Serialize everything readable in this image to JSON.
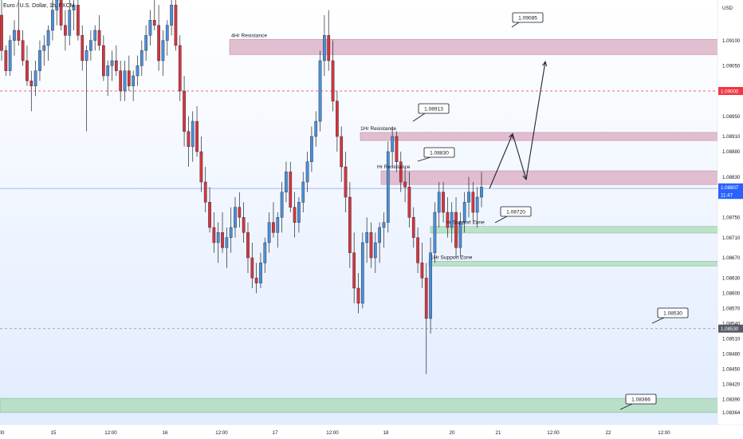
{
  "header": {
    "symbol": "Euro / U.S. Dollar, 1h, FXCM"
  },
  "currency": "USD",
  "colors": {
    "up": "#4b8fd8",
    "down": "#d7353d",
    "resistance": "#d8a6be",
    "support": "#a9d9b4",
    "bg_top": "#ffffff",
    "bg_bottom": "#e1ecff"
  },
  "chart_data": {
    "type": "candlestick",
    "ylim": [
      1.0834,
      1.0918
    ],
    "y_ticks": [
      "1.09100",
      "1.09050",
      "1.09000",
      "1.08950",
      "1.08910",
      "1.08880",
      "1.08830",
      "1.08790",
      "1.08750",
      "1.08710",
      "1.08670",
      "1.08630",
      "1.08600",
      "1.08570",
      "1.08540",
      "1.08510",
      "1.08480",
      "1.08450",
      "1.08420",
      "1.08390",
      "1.08364"
    ],
    "x_ticks": [
      "00",
      "15",
      "12:00",
      "16",
      "12:00",
      "17",
      "12:00",
      "18",
      "20",
      "21",
      "12:00",
      "22",
      "12:00"
    ],
    "price_labels": [
      {
        "value": "1.09000",
        "color": "#f23645"
      },
      {
        "value": "1.08807",
        "color": "#2962ff"
      },
      {
        "value": "11:47",
        "color": "#2962ff"
      },
      {
        "value": "1.08530",
        "color": "#555a66"
      }
    ],
    "zones": [
      {
        "label": "4Hr Resistance",
        "kind": "resistance",
        "from": 1.09072,
        "to": 1.09102
      },
      {
        "label": "1Hr Resistance",
        "kind": "resistance",
        "from": 1.08902,
        "to": 1.08918
      },
      {
        "label": "Hr Resistance",
        "kind": "resistance",
        "from": 1.08815,
        "to": 1.08842
      },
      {
        "label": "Hr Support Zone",
        "kind": "support",
        "from": 1.08719,
        "to": 1.08732
      },
      {
        "label": "1Hr Support Zone",
        "kind": "support",
        "from": 1.08654,
        "to": 1.08663
      },
      {
        "label": "",
        "kind": "support",
        "from": 1.08364,
        "to": 1.08392
      }
    ],
    "callouts": [
      "1.09085",
      "1.08913",
      "1.08830",
      "1.08720",
      "1.08530",
      "1.08366"
    ],
    "lines": [
      {
        "value": 1.09,
        "style": "dashed",
        "color": "#f23645"
      },
      {
        "value": 1.08807,
        "style": "solid",
        "color": "#b7c9f5"
      },
      {
        "value": 1.0853,
        "style": "dashed",
        "color": "#9aa0aa"
      }
    ],
    "projection": [
      1.08807,
      1.08915,
      1.08825,
      1.09058
    ],
    "candles": [
      [
        1.0915,
        1.0926,
        1.0906,
        1.0908
      ],
      [
        1.0908,
        1.0909,
        1.0903,
        1.0904
      ],
      [
        1.0904,
        1.0911,
        1.0903,
        1.091
      ],
      [
        1.091,
        1.0914,
        1.0907,
        1.0912
      ],
      [
        1.0912,
        1.0918,
        1.0909,
        1.091
      ],
      [
        1.091,
        1.0912,
        1.0905,
        1.0906
      ],
      [
        1.0906,
        1.0909,
        1.0901,
        1.0902
      ],
      [
        1.0902,
        1.0904,
        1.0896,
        1.0901
      ],
      [
        1.0901,
        1.0906,
        1.0899,
        1.0904
      ],
      [
        1.0904,
        1.091,
        1.0902,
        1.0908
      ],
      [
        1.0908,
        1.0911,
        1.0905,
        1.0909
      ],
      [
        1.0909,
        1.0913,
        1.0906,
        1.0912
      ],
      [
        1.0912,
        1.0918,
        1.091,
        1.0916
      ],
      [
        1.0916,
        1.0921,
        1.0913,
        1.0918
      ],
      [
        1.0918,
        1.0922,
        1.0912,
        1.0913
      ],
      [
        1.0913,
        1.0916,
        1.0908,
        1.0911
      ],
      [
        1.0911,
        1.0918,
        1.0909,
        1.0916
      ],
      [
        1.0916,
        1.092,
        1.0912,
        1.0917
      ],
      [
        1.0917,
        1.092,
        1.091,
        1.0911
      ],
      [
        1.0911,
        1.0913,
        1.0904,
        1.0906
      ],
      [
        1.0906,
        1.0909,
        1.0892,
        1.0908
      ],
      [
        1.0908,
        1.0912,
        1.0906,
        1.091
      ],
      [
        1.091,
        1.0913,
        1.0908,
        1.0912
      ],
      [
        1.0912,
        1.0915,
        1.0908,
        1.0909
      ],
      [
        1.0909,
        1.0911,
        1.0902,
        1.0903
      ],
      [
        1.0903,
        1.0906,
        1.0899,
        1.0905
      ],
      [
        1.0905,
        1.0908,
        1.0902,
        1.0906
      ],
      [
        1.0906,
        1.0909,
        1.0903,
        1.0904
      ],
      [
        1.0904,
        1.0906,
        1.0898,
        1.09
      ],
      [
        1.09,
        1.0906,
        1.0898,
        1.0904
      ],
      [
        1.0904,
        1.0907,
        1.09,
        1.0901
      ],
      [
        1.0901,
        1.0904,
        1.0898,
        1.0903
      ],
      [
        1.0903,
        1.0907,
        1.0901,
        1.0905
      ],
      [
        1.0905,
        1.091,
        1.0903,
        1.0908
      ],
      [
        1.0908,
        1.0913,
        1.0906,
        1.0911
      ],
      [
        1.0911,
        1.0916,
        1.0909,
        1.0914
      ],
      [
        1.0914,
        1.0918,
        1.0912,
        1.0913
      ],
      [
        1.0913,
        1.0917,
        1.0904,
        1.0906
      ],
      [
        1.0906,
        1.0912,
        1.0903,
        1.091
      ],
      [
        1.091,
        1.0914,
        1.0907,
        1.0913
      ],
      [
        1.0913,
        1.0919,
        1.0911,
        1.0917
      ],
      [
        1.0917,
        1.0918,
        1.0908,
        1.0909
      ],
      [
        1.0909,
        1.0911,
        1.0898,
        1.09
      ],
      [
        1.09,
        1.0903,
        1.0889,
        1.0892
      ],
      [
        1.0892,
        1.0895,
        1.0885,
        1.0889
      ],
      [
        1.0889,
        1.0896,
        1.0886,
        1.0894
      ],
      [
        1.0894,
        1.0897,
        1.0887,
        1.0888
      ],
      [
        1.0888,
        1.0891,
        1.088,
        1.0882
      ],
      [
        1.0882,
        1.0885,
        1.0876,
        1.0878
      ],
      [
        1.0878,
        1.0881,
        1.0872,
        1.0873
      ],
      [
        1.0873,
        1.0876,
        1.0868,
        1.087
      ],
      [
        1.087,
        1.0874,
        1.0866,
        1.0872
      ],
      [
        1.0872,
        1.0876,
        1.0868,
        1.0869
      ],
      [
        1.0869,
        1.0873,
        1.0865,
        1.0871
      ],
      [
        1.0871,
        1.0877,
        1.0868,
        1.0873
      ],
      [
        1.0873,
        1.0879,
        1.0871,
        1.0877
      ],
      [
        1.0877,
        1.088,
        1.0873,
        1.0875
      ],
      [
        1.0875,
        1.0878,
        1.087,
        1.0872
      ],
      [
        1.0872,
        1.0874,
        1.0864,
        1.0867
      ],
      [
        1.0867,
        1.087,
        1.0861,
        1.0863
      ],
      [
        1.0863,
        1.0866,
        1.086,
        1.0862
      ],
      [
        1.0862,
        1.0868,
        1.0861,
        1.0866
      ],
      [
        1.0866,
        1.0871,
        1.0864,
        1.087
      ],
      [
        1.087,
        1.0876,
        1.0868,
        1.0874
      ],
      [
        1.0874,
        1.0878,
        1.0871,
        1.0872
      ],
      [
        1.0872,
        1.0876,
        1.0869,
        1.0875
      ],
      [
        1.0875,
        1.0882,
        1.0872,
        1.088
      ],
      [
        1.088,
        1.0886,
        1.0878,
        1.0884
      ],
      [
        1.0884,
        1.0886,
        1.0876,
        1.0877
      ],
      [
        1.0877,
        1.088,
        1.0871,
        1.0874
      ],
      [
        1.0874,
        1.0879,
        1.0872,
        1.0878
      ],
      [
        1.0878,
        1.0884,
        1.0876,
        1.0882
      ],
      [
        1.0882,
        1.0888,
        1.088,
        1.0886
      ],
      [
        1.0886,
        1.0893,
        1.0884,
        1.0891
      ],
      [
        1.0891,
        1.0896,
        1.0889,
        1.0894
      ],
      [
        1.0894,
        1.0908,
        1.0892,
        1.0906
      ],
      [
        1.0906,
        1.0915,
        1.0903,
        1.0911
      ],
      [
        1.0911,
        1.0916,
        1.0904,
        1.0906
      ],
      [
        1.0906,
        1.091,
        1.0896,
        1.0898
      ],
      [
        1.0898,
        1.09,
        1.0888,
        1.0891
      ],
      [
        1.0891,
        1.0893,
        1.0882,
        1.0885
      ],
      [
        1.0885,
        1.0888,
        1.0876,
        1.0879
      ],
      [
        1.0879,
        1.0882,
        1.0865,
        1.0868
      ],
      [
        1.0868,
        1.0872,
        1.0858,
        1.0861
      ],
      [
        1.0861,
        1.0864,
        1.0856,
        1.0858
      ],
      [
        1.0858,
        1.0872,
        1.0857,
        1.087
      ],
      [
        1.087,
        1.0875,
        1.0866,
        1.0872
      ],
      [
        1.0872,
        1.0874,
        1.0865,
        1.0867
      ],
      [
        1.0867,
        1.0872,
        1.0864,
        1.087
      ],
      [
        1.087,
        1.0874,
        1.0866,
        1.0873
      ],
      [
        1.0873,
        1.0876,
        1.0869,
        1.0874
      ],
      [
        1.0874,
        1.089,
        1.0872,
        1.0888
      ],
      [
        1.0888,
        1.0893,
        1.0885,
        1.0891
      ],
      [
        1.0891,
        1.0892,
        1.0884,
        1.0886
      ],
      [
        1.0886,
        1.0888,
        1.088,
        1.0882
      ],
      [
        1.0882,
        1.0885,
        1.0878,
        1.0881
      ],
      [
        1.0881,
        1.0884,
        1.0873,
        1.0875
      ],
      [
        1.0875,
        1.0877,
        1.0869,
        1.0871
      ],
      [
        1.0871,
        1.0873,
        1.0864,
        1.0866
      ],
      [
        1.0866,
        1.087,
        1.0861,
        1.0863
      ],
      [
        1.0863,
        1.0866,
        1.0844,
        1.0855
      ],
      [
        1.0855,
        1.0871,
        1.0852,
        1.0868
      ],
      [
        1.0868,
        1.0878,
        1.0866,
        1.0876
      ],
      [
        1.0876,
        1.0882,
        1.0873,
        1.088
      ],
      [
        1.088,
        1.0882,
        1.0874,
        1.0876
      ],
      [
        1.0876,
        1.0879,
        1.0871,
        1.0873
      ],
      [
        1.0873,
        1.0878,
        1.087,
        1.0876
      ],
      [
        1.0876,
        1.0879,
        1.0867,
        1.0869
      ],
      [
        1.0869,
        1.0876,
        1.0867,
        1.0874
      ],
      [
        1.0874,
        1.088,
        1.0872,
        1.0878
      ],
      [
        1.0878,
        1.0883,
        1.0875,
        1.088
      ],
      [
        1.088,
        1.0882,
        1.0874,
        1.0876
      ],
      [
        1.0876,
        1.0881,
        1.0873,
        1.0879
      ],
      [
        1.0879,
        1.0884,
        1.0877,
        1.0881
      ]
    ]
  }
}
